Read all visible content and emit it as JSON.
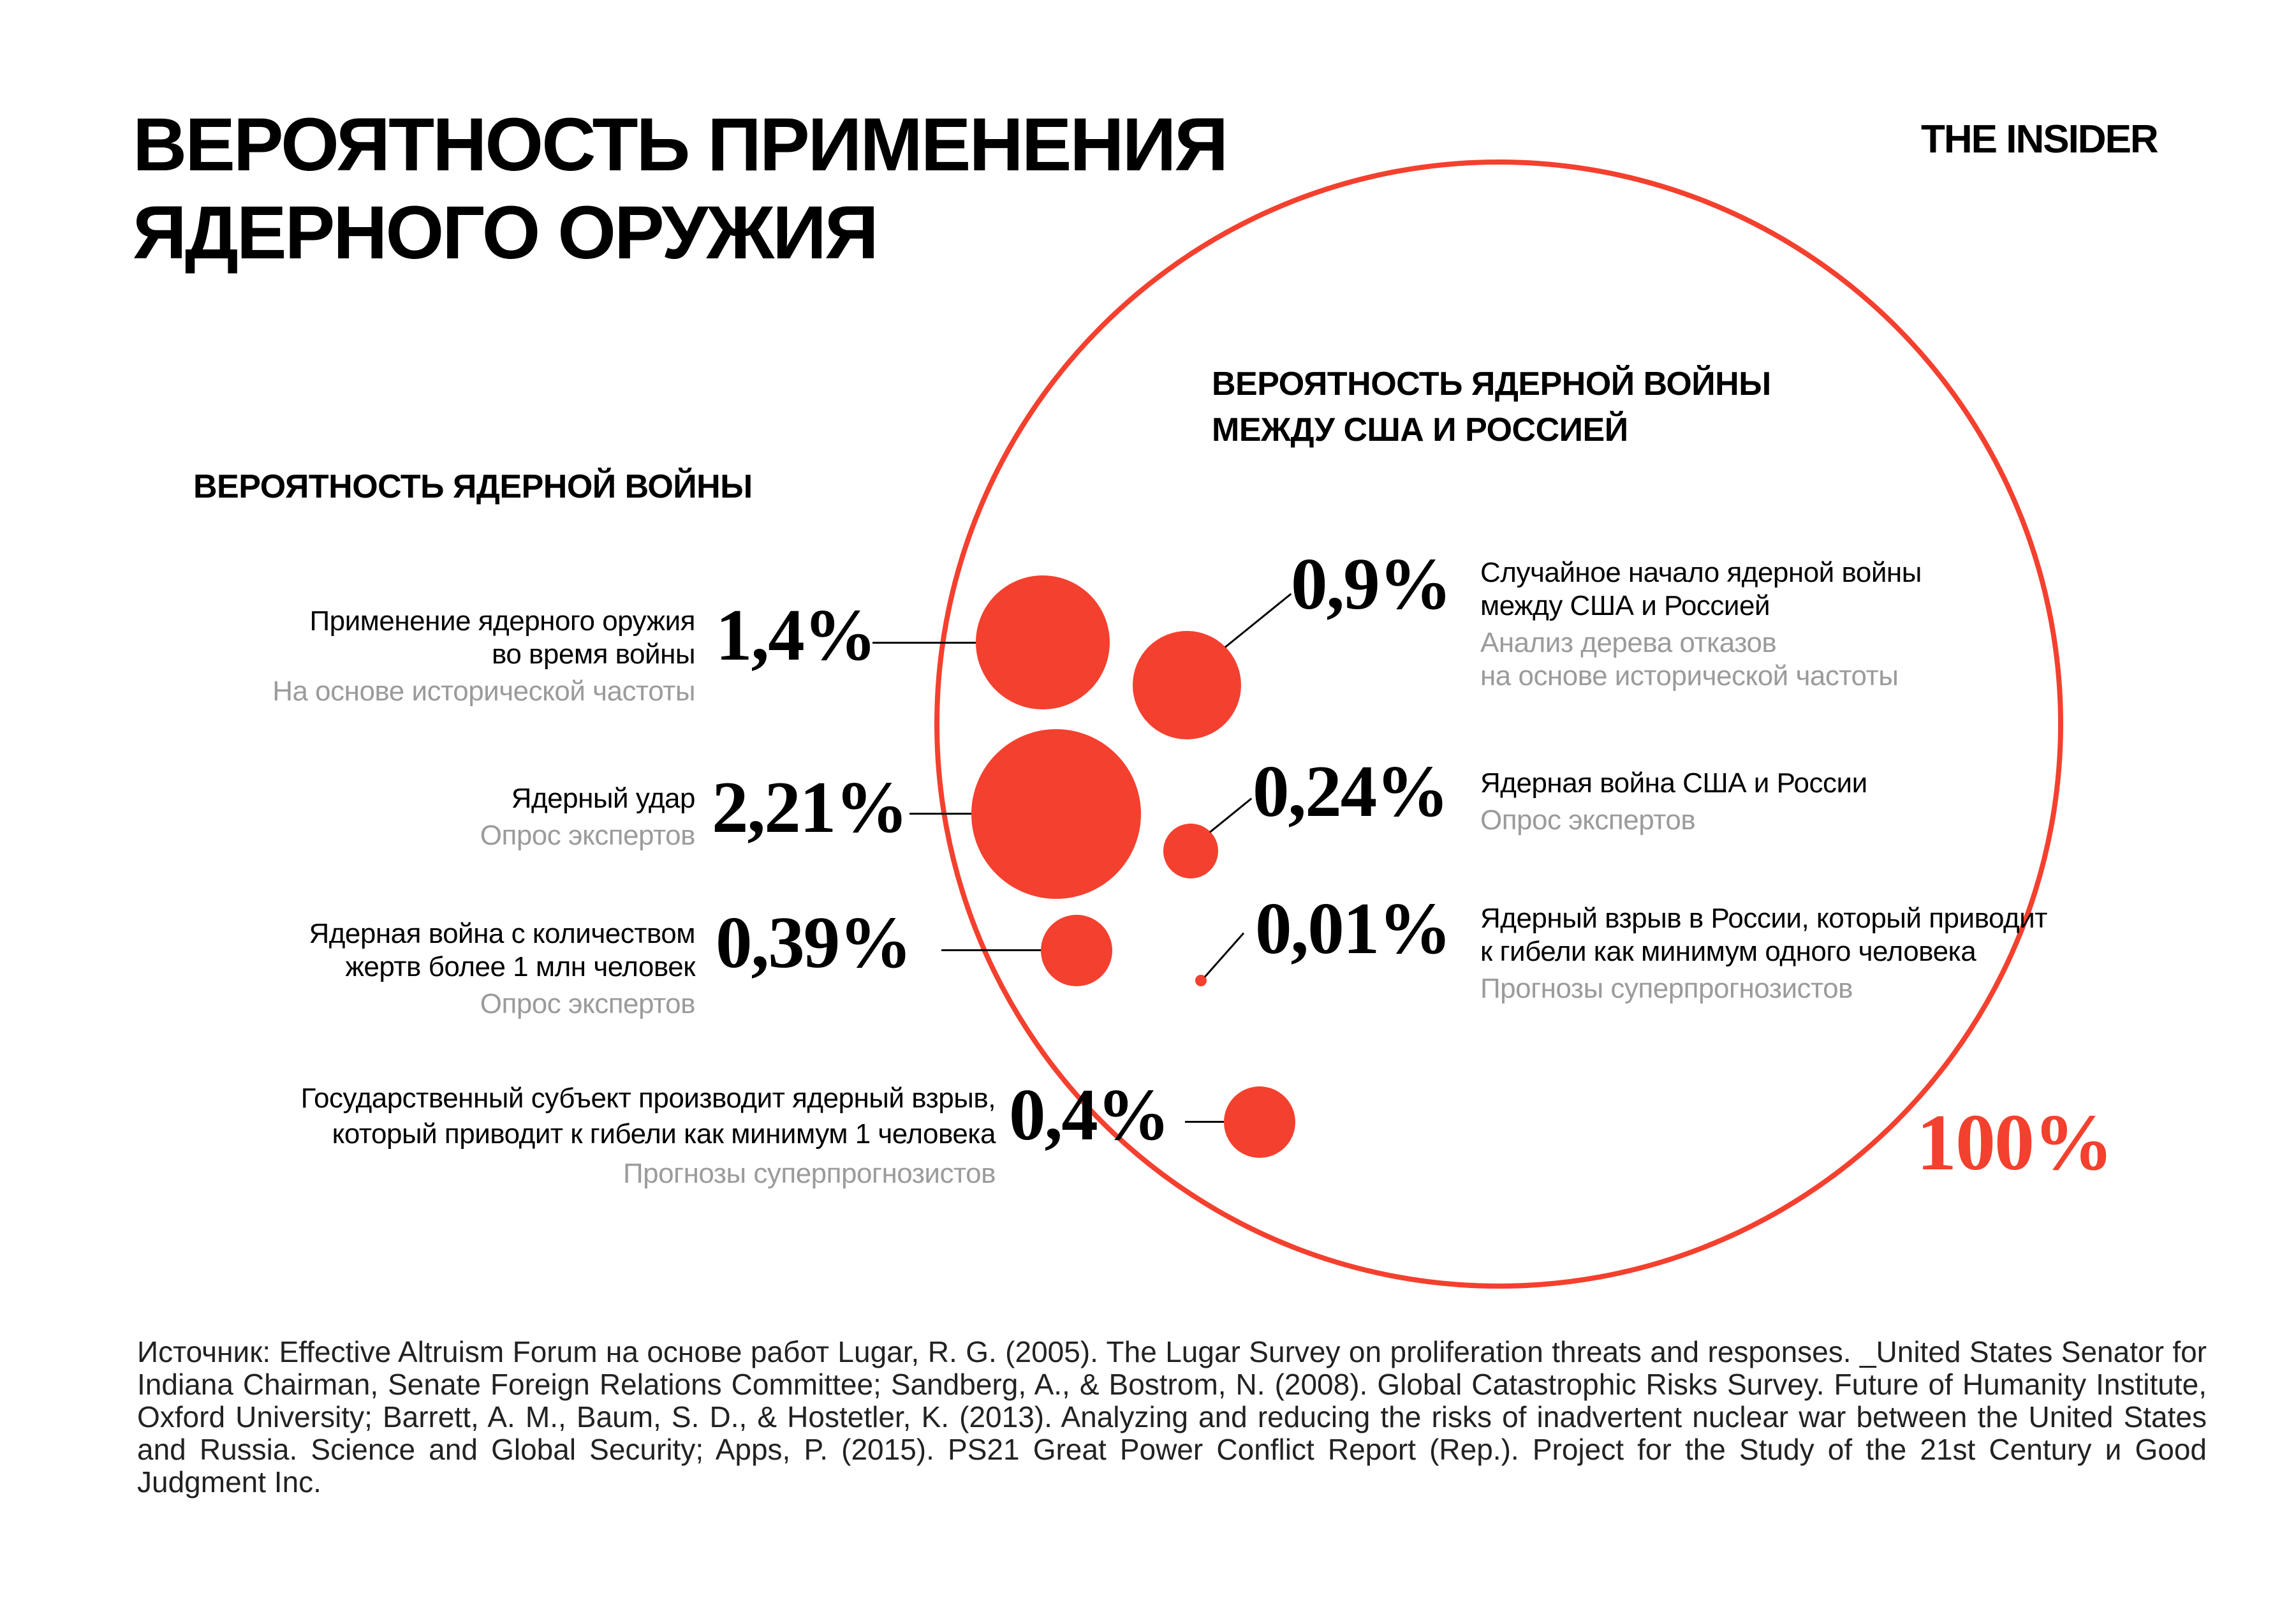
{
  "colors": {
    "accent_red": "#F4402E",
    "label_black": "#000000",
    "muted_gray": "#9B9B9B",
    "source_text": "#222222"
  },
  "header": {
    "title_line1": "ВЕРОЯТНОСТЬ ПРИМЕНЕНИЯ",
    "title_line2": "ЯДЕРНОГО ОРУЖИЯ",
    "logo": "THE INSIDER"
  },
  "left_section": {
    "heading": "ВЕРОЯТНОСТЬ ЯДЕРНОЙ ВОЙНЫ",
    "items": [
      {
        "label_line1": "Применение ядерного оружия",
        "label_line2": "во время войны",
        "method": "На основе исторической частоты",
        "value": "1,4%"
      },
      {
        "label_line1": "Ядерный удар",
        "method": "Опрос экспертов",
        "value": "2,21%"
      },
      {
        "label_line1": "Ядерная война с количеством",
        "label_line2": "жертв более 1 млн человек",
        "method": "Опрос экспертов",
        "value": "0,39%"
      },
      {
        "label_line1": "Государственный субъект производит ядерный взрыв,",
        "label_line2": "который приводит к гибели как минимум 1 человека",
        "method": "Прогнозы суперпрогнозистов",
        "value": "0,4%"
      }
    ]
  },
  "right_section": {
    "heading_line1": "ВЕРОЯТНОСТЬ ЯДЕРНОЙ ВОЙНЫ",
    "heading_line2": "МЕЖДУ США И РОССИЕЙ",
    "items": [
      {
        "value": "0,9%",
        "label_line1": "Случайное начало ядерной войны",
        "label_line2": "между США и Россией",
        "method_line1": "Анализ дерева отказов",
        "method_line2": "на основе исторической частоты"
      },
      {
        "value": "0,24%",
        "label_line1": "Ядерная война США и России",
        "method_line1": "Опрос экспертов"
      },
      {
        "value": "0,01%",
        "label_line1": "Ядерный взрыв в России, который приводит",
        "label_line2": "к гибели как минимум одного человека",
        "method_line1": "Прогнозы суперпрогнозистов"
      }
    ],
    "total_label": "100%"
  },
  "source": "Источник: Effective Altruism Forum на основе работ Lugar, R. G. (2005). The Lugar Survey on proliferation threats and responses. _United States Senator for Indiana Chairman, Senate Foreign Relations Committee; Sandberg, A., & Bostrom, N. (2008). Global Catastrophic Risks Survey. Future of Humanity Institute, Oxford University; Barrett, A. M., Baum, S. D., & Hostetler, K. (2013). Analyzing and reducing the risks of inadvertent nuclear war between the United States and Russia. Science and Global Security; Apps, P. (2015). PS21 Great Power Conflict Report (Rep.). Project for the Study of the 21st Century и Good Judgment Inc.",
  "chart_data": {
    "type": "bubble",
    "title": "Вероятность применения ядерного оружия",
    "encoding": "area-proportional filled circles; outlined circle = 100% reference",
    "reference_circle_pct": 100,
    "series": [
      {
        "name": "Вероятность ядерной войны",
        "points": [
          {
            "label": "Применение ядерного оружия во время войны",
            "method": "На основе исторической частоты",
            "value_pct": 1.4
          },
          {
            "label": "Ядерный удар",
            "method": "Опрос экспертов",
            "value_pct": 2.21
          },
          {
            "label": "Ядерная война с количеством жертв более 1 млн человек",
            "method": "Опрос экспертов",
            "value_pct": 0.39
          },
          {
            "label": "Государственный субъект производит ядерный взрыв, который приводит к гибели как минимум 1 человека",
            "method": "Прогнозы суперпрогнозистов",
            "value_pct": 0.4
          }
        ]
      },
      {
        "name": "Вероятность ядерной войны между США и Россией",
        "points": [
          {
            "label": "Случайное начало ядерной войны между США и Россией",
            "method": "Анализ дерева отказов на основе исторической частоты",
            "value_pct": 0.9
          },
          {
            "label": "Ядерная война США и России",
            "method": "Опрос экспертов",
            "value_pct": 0.24
          },
          {
            "label": "Ядерный взрыв в России, который приводит к гибели как минимум одного человека",
            "method": "Прогнозы суперпрогнозистов",
            "value_pct": 0.01
          }
        ]
      }
    ]
  }
}
